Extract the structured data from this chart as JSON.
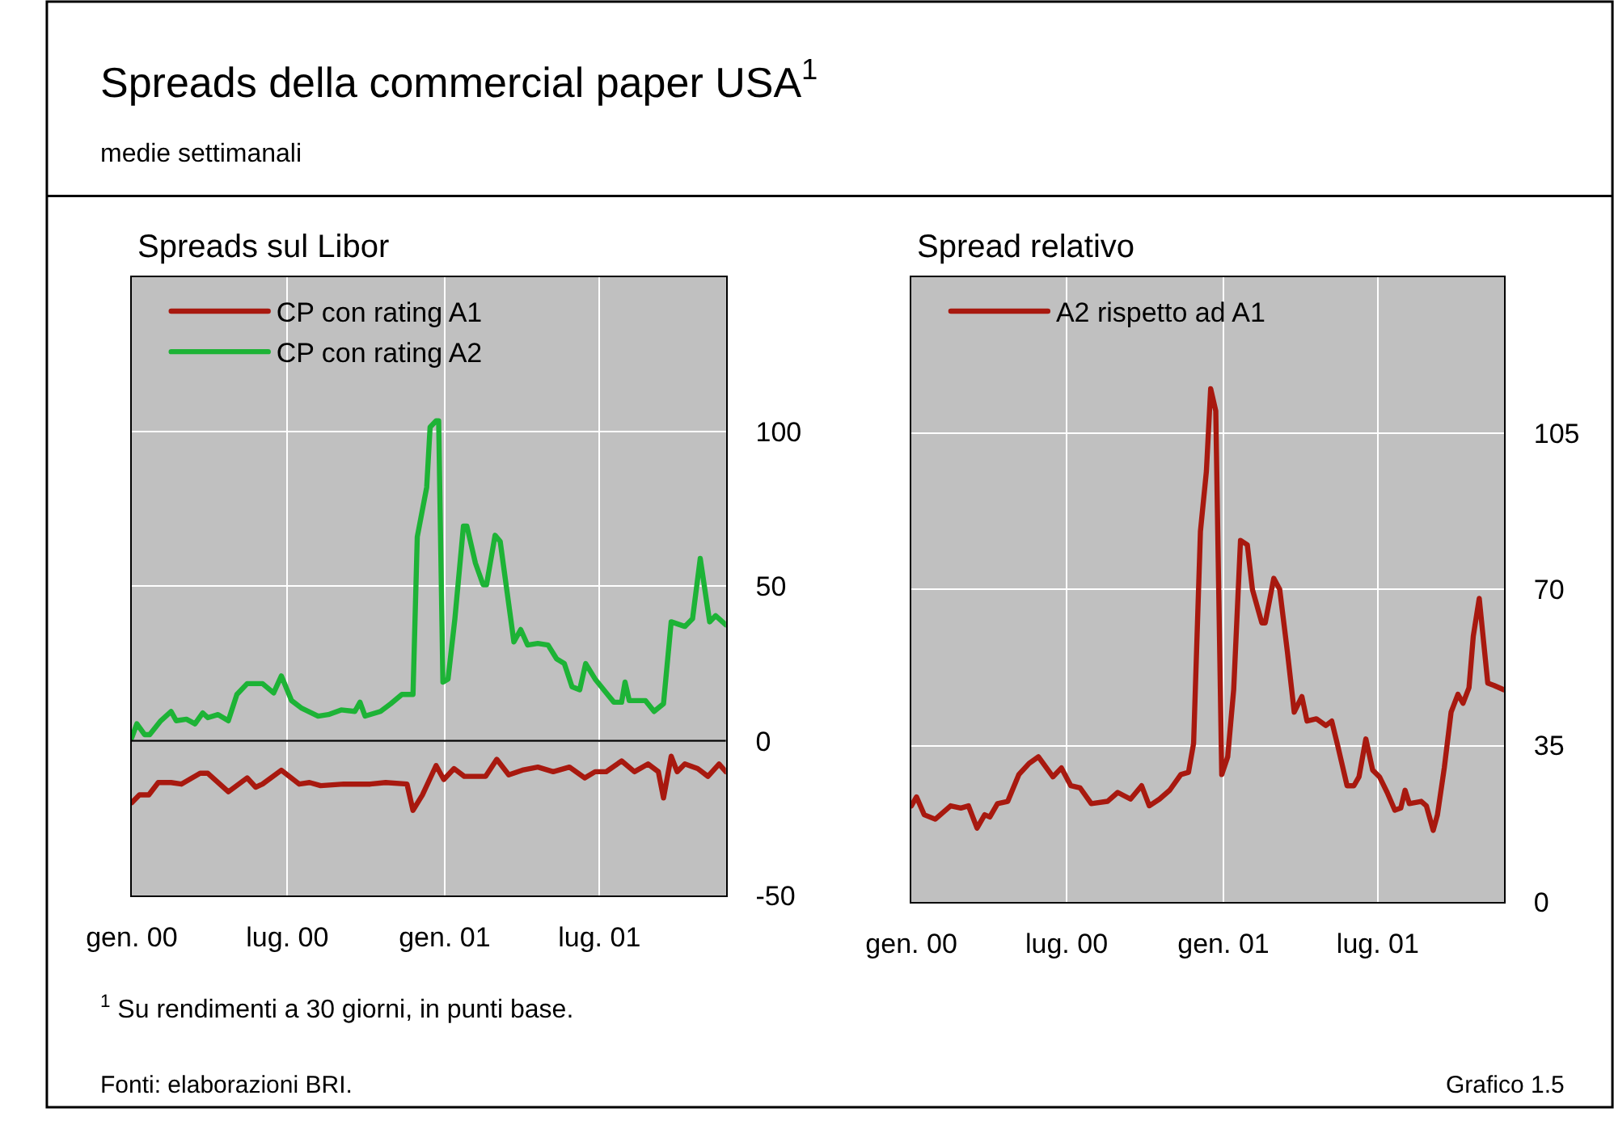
{
  "chart_data": [
    {
      "type": "line",
      "title": "Spreads sul Libor",
      "annotations": [
        "Spreads della commercial paper USA$^{1}$",
        "medie settimanali",
        "$^{1}$ Su rendimenti a 30 giorni, in punti base.",
        "Fonti: elaborazioni BRI.",
        "Grafico 1.5"
      ],
      "series": [
        {
          "name": "CP con rating A1",
          "color": "#a8190f",
          "x": [
            "2000-01-01",
            "2000-01-10",
            "2000-01-21",
            "2000-02-01",
            "2000-02-16",
            "2000-02-28",
            "2000-03-21",
            "2000-03-30",
            "2000-04-23",
            "2000-05-15",
            "2000-05-25",
            "2000-06-02",
            "2000-06-24",
            "2000-07-15",
            "2000-07-27",
            "2000-08-09",
            "2000-09-05",
            "2000-10-06",
            "2000-10-24",
            "2000-11-18",
            "2000-11-25",
            "2000-12-06",
            "2000-12-22",
            "2000-12-31",
            "2001-01-12",
            "2001-01-24",
            "2001-02-18",
            "2001-03-03",
            "2001-03-17",
            "2001-04-02",
            "2001-04-20",
            "2001-05-08",
            "2001-05-27",
            "2001-06-14",
            "2001-06-26",
            "2001-07-09",
            "2001-07-27",
            "2001-08-11",
            "2001-08-27",
            "2001-09-08",
            "2001-09-14",
            "2001-09-23",
            "2001-09-30",
            "2001-10-09",
            "2001-10-24",
            "2001-11-05",
            "2001-11-18",
            "2001-11-26"
          ],
          "values": [
            -20,
            -17.5,
            -17.5,
            -13.5,
            -13.5,
            -14,
            -10.5,
            -10.5,
            -16.5,
            -12,
            -15,
            -14,
            -9.5,
            -14,
            -13.5,
            -14.5,
            -14,
            -14,
            -13.5,
            -14,
            -22.5,
            -17.5,
            -8,
            -12.5,
            -9,
            -11.5,
            -11.5,
            -6,
            -11,
            -9.5,
            -8.5,
            -10,
            -8.5,
            -12,
            -10,
            -10,
            -6.5,
            -10,
            -7.5,
            -10,
            -18.5,
            -5,
            -10,
            -7.5,
            -9,
            -11.5,
            -7.5,
            -10
          ]
        },
        {
          "name": "CP con rating A2",
          "color": "#1db336",
          "x": [
            "2000-01-01",
            "2000-01-07",
            "2000-01-16",
            "2000-01-22",
            "2000-02-04",
            "2000-02-16",
            "2000-02-22",
            "2000-03-05",
            "2000-03-15",
            "2000-03-24",
            "2000-03-30",
            "2000-04-11",
            "2000-04-23",
            "2000-05-03",
            "2000-05-15",
            "2000-06-02",
            "2000-06-15",
            "2000-06-24",
            "2000-07-06",
            "2000-07-18",
            "2000-08-06",
            "2000-08-18",
            "2000-09-02",
            "2000-09-18",
            "2000-09-24",
            "2000-09-30",
            "2000-10-18",
            "2000-10-30",
            "2000-11-12",
            "2000-11-21",
            "2000-11-25",
            "2000-11-30",
            "2000-12-11",
            "2000-12-15",
            "2000-12-22",
            "2000-12-25",
            "2000-12-30",
            "2001-01-05",
            "2001-01-13",
            "2001-01-23",
            "2001-01-27",
            "2001-02-06",
            "2001-02-15",
            "2001-02-19",
            "2001-03-01",
            "2001-03-07",
            "2001-03-23",
            "2001-03-31",
            "2001-04-08",
            "2001-04-20",
            "2001-05-02",
            "2001-05-12",
            "2001-05-21",
            "2001-05-30",
            "2001-06-08",
            "2001-06-15",
            "2001-06-26",
            "2001-07-09",
            "2001-07-18",
            "2001-07-27",
            "2001-07-31",
            "2001-08-05",
            "2001-08-24",
            "2001-09-03",
            "2001-09-14",
            "2001-09-23",
            "2001-10-09",
            "2001-10-18",
            "2001-10-27",
            "2001-11-07",
            "2001-11-14",
            "2001-11-26"
          ],
          "values": [
            1,
            5.5,
            2,
            2,
            6.5,
            9.5,
            6.5,
            7,
            5.5,
            9,
            7.5,
            8.5,
            6.5,
            15,
            18.5,
            18.5,
            15.5,
            21,
            13,
            10.5,
            8,
            8.5,
            10,
            9.5,
            12.5,
            8,
            9.5,
            12,
            15,
            15,
            15,
            66,
            82,
            101.5,
            103.5,
            103.5,
            19,
            20,
            39.5,
            69.5,
            69.5,
            57.5,
            50.5,
            50.5,
            66.5,
            64.5,
            32,
            36,
            31,
            31.5,
            31,
            26.5,
            25,
            17.5,
            16.5,
            25,
            20,
            15.5,
            12.5,
            12.5,
            19,
            13,
            13,
            9.5,
            12,
            38.5,
            37,
            39.5,
            59,
            38.5,
            40.5,
            37.5
          ]
        }
      ],
      "xlim": [
        "2000-01-01",
        "2001-11-26"
      ],
      "xticks": [
        {
          "value": "2000-01-01",
          "label": "gen. 00"
        },
        {
          "value": "2000-07-01",
          "label": "lug. 00"
        },
        {
          "value": "2001-01-01",
          "label": "gen. 01"
        },
        {
          "value": "2001-07-01",
          "label": "lug. 01"
        }
      ],
      "ylim": [
        -50,
        150
      ],
      "yticks": [
        -50,
        0,
        50,
        100
      ],
      "ref_lines": [
        {
          "axis": "y",
          "value": 0,
          "color": "#000000"
        }
      ],
      "grid": true,
      "legend": "top left"
    },
    {
      "type": "line",
      "title": "Spread relativo",
      "series": [
        {
          "name": "A2 rispetto ad A1",
          "color": "#a8190f",
          "x": [
            "2000-01-01",
            "2000-01-07",
            "2000-01-16",
            "2000-01-29",
            "2000-02-16",
            "2000-02-28",
            "2000-03-08",
            "2000-03-18",
            "2000-03-27",
            "2000-04-02",
            "2000-04-11",
            "2000-04-23",
            "2000-05-06",
            "2000-05-18",
            "2000-05-29",
            "2000-06-15",
            "2000-06-25",
            "2000-07-06",
            "2000-07-17",
            "2000-07-30",
            "2000-08-18",
            "2000-08-30",
            "2000-09-14",
            "2000-09-27",
            "2000-10-06",
            "2000-10-18",
            "2000-10-30",
            "2000-11-12",
            "2000-11-21",
            "2000-11-27",
            "2000-12-05",
            "2000-12-12",
            "2000-12-17",
            "2000-12-23",
            "2000-12-30",
            "2001-01-06",
            "2001-01-13",
            "2001-01-21",
            "2001-01-29",
            "2001-02-04",
            "2001-02-15",
            "2001-02-19",
            "2001-03-01",
            "2001-03-08",
            "2001-03-17",
            "2001-03-25",
            "2001-04-03",
            "2001-04-09",
            "2001-04-20",
            "2001-05-01",
            "2001-05-08",
            "2001-05-15",
            "2001-05-26",
            "2001-06-03",
            "2001-06-09",
            "2001-06-17",
            "2001-06-25",
            "2001-07-03",
            "2001-07-12",
            "2001-07-21",
            "2001-07-28",
            "2001-08-02",
            "2001-08-07",
            "2001-08-21",
            "2001-08-27",
            "2001-09-04",
            "2001-09-09",
            "2001-09-17",
            "2001-09-25",
            "2001-10-03",
            "2001-10-09",
            "2001-10-16",
            "2001-10-21",
            "2001-10-28",
            "2001-11-07",
            "2001-11-14",
            "2001-11-26"
          ],
          "values": [
            21.5,
            23.5,
            19.5,
            18.5,
            21.5,
            21,
            21.5,
            16.5,
            19.5,
            19,
            22,
            22.5,
            28.5,
            31,
            32.5,
            28,
            30,
            26,
            25.5,
            22,
            22.5,
            24.5,
            23,
            26,
            21.5,
            23,
            25,
            28.5,
            29,
            35.5,
            83,
            96.5,
            115,
            110,
            28.5,
            32.5,
            47.5,
            81,
            80,
            70,
            62.5,
            62.5,
            72.5,
            70,
            56,
            42.5,
            46,
            40.5,
            41,
            39.5,
            40.5,
            35,
            26,
            26,
            28,
            36.5,
            29.5,
            28,
            24.5,
            20.5,
            21,
            25,
            22,
            22.5,
            21.5,
            16,
            19.5,
            30,
            42.5,
            46.5,
            44.5,
            48,
            59.5,
            68,
            49,
            48.5,
            47.5
          ]
        }
      ],
      "xlim": [
        "2000-01-01",
        "2001-11-26"
      ],
      "xticks": [
        {
          "value": "2000-01-01",
          "label": "gen. 00"
        },
        {
          "value": "2000-07-01",
          "label": "lug. 00"
        },
        {
          "value": "2001-01-01",
          "label": "gen. 01"
        },
        {
          "value": "2001-07-01",
          "label": "lug. 01"
        }
      ],
      "ylim": [
        0,
        140
      ],
      "yticks": [
        0,
        35,
        70,
        105
      ],
      "grid": true,
      "legend": "top left"
    }
  ]
}
